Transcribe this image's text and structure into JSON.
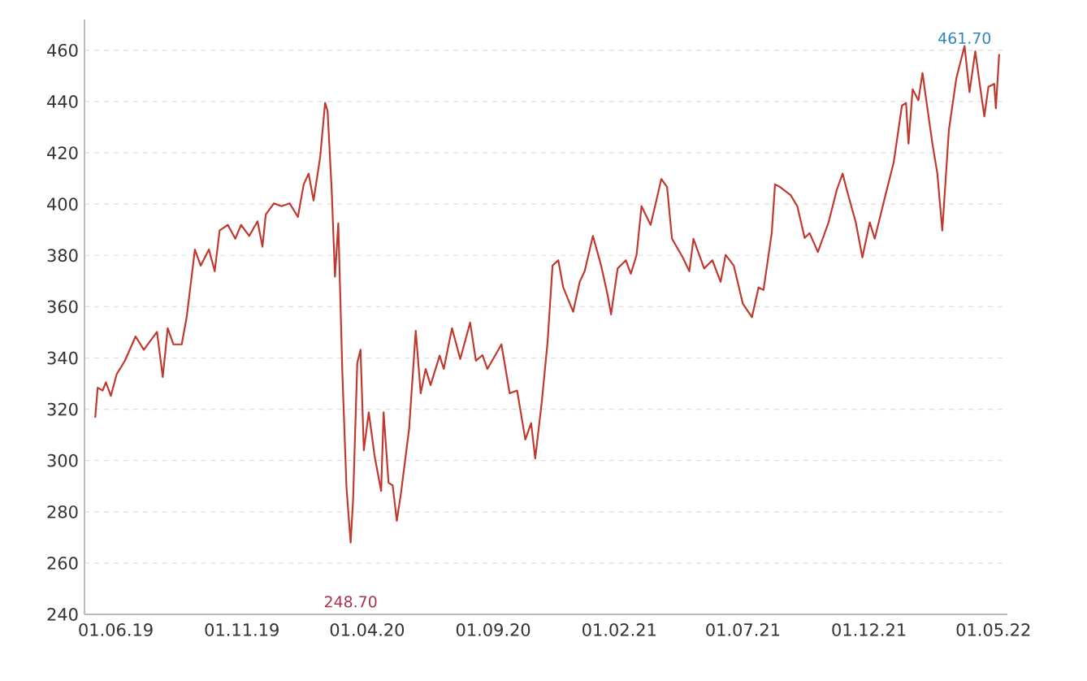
{
  "chart_data": {
    "type": "line",
    "xlim": [
      "2019-04-24",
      "2022-05-18"
    ],
    "ylim": [
      240,
      472
    ],
    "xticks": [
      {
        "value": "2019-06-01",
        "label": "01.06.19"
      },
      {
        "value": "2019-11-01",
        "label": "01.11.19"
      },
      {
        "value": "2020-04-01",
        "label": "01.04.20"
      },
      {
        "value": "2020-09-01",
        "label": "01.09.20"
      },
      {
        "value": "2021-02-01",
        "label": "01.02.21"
      },
      {
        "value": "2021-07-01",
        "label": "01.07.21"
      },
      {
        "value": "2021-12-01",
        "label": "01.12.21"
      },
      {
        "value": "2022-05-01",
        "label": "01.05.22"
      }
    ],
    "yticks": [
      240,
      260,
      280,
      300,
      320,
      340,
      360,
      380,
      400,
      420,
      440,
      460
    ],
    "grid": "y",
    "marker": "none",
    "line_style": "solid",
    "annotations": [
      {
        "text": "461.70",
        "x": "2022-03-27",
        "y": 461.7
      },
      "248.70"
    ],
    "series": [
      {
        "color": "#c0392f",
        "x": [
          "2019-05-07",
          "2019-05-10",
          "2019-05-16",
          "2019-05-20",
          "2019-05-26",
          "2019-06-02",
          "2019-06-12",
          "2019-06-25",
          "2019-07-05",
          "2019-07-21",
          "2019-07-28",
          "2019-08-03",
          "2019-08-10",
          "2019-08-20",
          "2019-08-26",
          "2019-09-05",
          "2019-09-12",
          "2019-09-22",
          "2019-09-29",
          "2019-10-05",
          "2019-10-15",
          "2019-10-24",
          "2019-10-31",
          "2019-11-10",
          "2019-11-20",
          "2019-11-26",
          "2019-11-30",
          "2019-12-10",
          "2019-12-19",
          "2019-12-29",
          "2020-01-08",
          "2020-01-15",
          "2020-01-21",
          "2020-01-27",
          "2020-02-04",
          "2020-02-10",
          "2020-02-13",
          "2020-02-18",
          "2020-02-22",
          "2020-02-26",
          "2020-03-02",
          "2020-03-07",
          "2020-03-12",
          "2020-03-15",
          "2020-03-20",
          "2020-03-24",
          "2020-03-28",
          "2020-04-03",
          "2020-04-10",
          "2020-04-18",
          "2020-04-21",
          "2020-04-27",
          "2020-05-02",
          "2020-05-07",
          "2020-05-12",
          "2020-05-22",
          "2020-05-30",
          "2020-06-05",
          "2020-06-11",
          "2020-06-17",
          "2020-06-28",
          "2020-07-03",
          "2020-07-13",
          "2020-07-23",
          "2020-08-04",
          "2020-08-11",
          "2020-08-19",
          "2020-08-25",
          "2020-09-11",
          "2020-09-21",
          "2020-09-30",
          "2020-10-10",
          "2020-10-17",
          "2020-10-22",
          "2020-10-30",
          "2020-11-06",
          "2020-11-12",
          "2020-11-19",
          "2020-11-25",
          "2020-12-07",
          "2020-12-15",
          "2020-12-21",
          "2020-12-31",
          "2021-01-10",
          "2021-01-18",
          "2021-01-22",
          "2021-01-30",
          "2021-02-09",
          "2021-02-15",
          "2021-02-22",
          "2021-02-28",
          "2021-03-11",
          "2021-03-18",
          "2021-03-24",
          "2021-03-31",
          "2021-04-06",
          "2021-04-19",
          "2021-04-27",
          "2021-05-02",
          "2021-05-15",
          "2021-05-25",
          "2021-06-04",
          "2021-06-10",
          "2021-06-20",
          "2021-07-01",
          "2021-07-12",
          "2021-07-20",
          "2021-07-26",
          "2021-08-05",
          "2021-08-09",
          "2021-08-15",
          "2021-08-28",
          "2021-09-05",
          "2021-09-14",
          "2021-09-20",
          "2021-09-30",
          "2021-10-13",
          "2021-10-23",
          "2021-10-30",
          "2021-11-05",
          "2021-11-15",
          "2021-11-23",
          "2021-12-02",
          "2021-12-08",
          "2021-12-21",
          "2021-12-31",
          "2022-01-10",
          "2022-01-15",
          "2022-01-18",
          "2022-01-23",
          "2022-01-30",
          "2022-02-04",
          "2022-02-09",
          "2022-02-16",
          "2022-02-22",
          "2022-02-28",
          "2022-03-08",
          "2022-03-17",
          "2022-03-27",
          "2022-04-02",
          "2022-04-09",
          "2022-04-14",
          "2022-04-20",
          "2022-04-25",
          "2022-05-02",
          "2022-05-04",
          "2022-05-08"
        ],
        "values": [
          316.7,
          328.4,
          327.3,
          330.5,
          325.2,
          333.6,
          338.9,
          348.4,
          343.2,
          350.2,
          332.6,
          351.6,
          345.3,
          345.3,
          355.9,
          382.3,
          376,
          382.3,
          373.8,
          389.7,
          391.9,
          386.5,
          391.9,
          387.6,
          393.3,
          383.4,
          396,
          400.3,
          399.2,
          400.3,
          395,
          407.7,
          411.9,
          401.4,
          418.3,
          439.5,
          436.3,
          405.6,
          371.7,
          392.5,
          333.6,
          289.2,
          268,
          284.9,
          337.9,
          343.2,
          304,
          318.8,
          301.9,
          288.1,
          318.8,
          291.3,
          290.3,
          276.5,
          287.1,
          312.5,
          350.6,
          326.2,
          335.7,
          329.4,
          340.9,
          335.7,
          351.6,
          339.6,
          353.8,
          338.9,
          341.1,
          335.7,
          345.3,
          326.2,
          327.3,
          308.2,
          314.6,
          300.8,
          323,
          346.3,
          376,
          378.1,
          367.5,
          358,
          369.7,
          373.8,
          387.6,
          376,
          364.3,
          357,
          374.9,
          378.1,
          372.8,
          380.2,
          399.2,
          391.9,
          401.4,
          409.8,
          406.7,
          386.5,
          379.2,
          373.8,
          386.5,
          374.9,
          378.1,
          369.7,
          380.2,
          376,
          361.1,
          355.9,
          367.5,
          366.5,
          388.7,
          407.7,
          406.7,
          403.5,
          399.2,
          386.8,
          388.7,
          381.3,
          392.9,
          405.6,
          411.9,
          404.5,
          392.9,
          379.2,
          392.9,
          386.5,
          403.5,
          416.2,
          438.4,
          439.5,
          423.6,
          444.8,
          440.5,
          451.1,
          439.5,
          423.6,
          411.9,
          389.7,
          428.9,
          449,
          461.7,
          443.7,
          459.6,
          447.9,
          434.2,
          445.8,
          446.9,
          437.4,
          458.5
        ]
      }
    ]
  }
}
